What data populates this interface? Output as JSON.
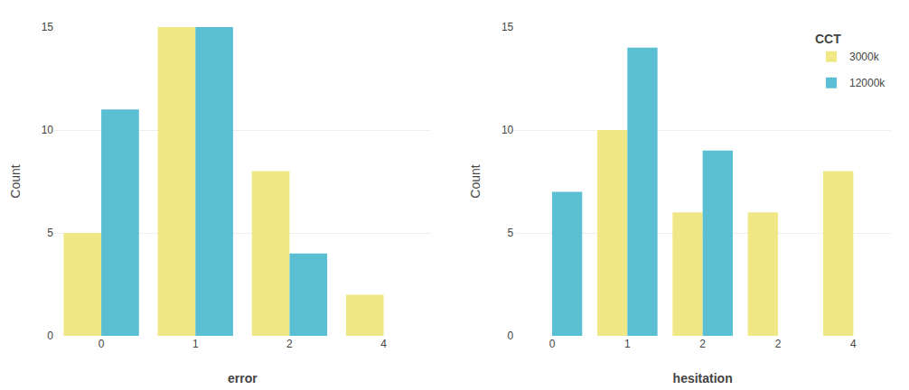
{
  "chart_data": [
    {
      "type": "bar",
      "xlabel": "error",
      "ylabel": "Count",
      "categories": [
        "0",
        "1",
        "2",
        "4"
      ],
      "series": [
        {
          "name": "3000k",
          "color": "#f0e887",
          "values": [
            5,
            15,
            8,
            2
          ]
        },
        {
          "name": "12000k",
          "color": "#5bbfd4",
          "values": [
            11,
            15,
            4,
            0
          ]
        }
      ],
      "ylim": [
        0,
        15
      ],
      "yticks": [
        0,
        5,
        10,
        15
      ],
      "grid": true
    },
    {
      "type": "bar",
      "xlabel": "hesitation",
      "ylabel": "Count",
      "categories": [
        "0",
        "1",
        "2",
        "2",
        "4"
      ],
      "series": [
        {
          "name": "3000k",
          "color": "#f0e887",
          "values": [
            0,
            10,
            6,
            6,
            8
          ]
        },
        {
          "name": "12000k",
          "color": "#5bbfd4",
          "values": [
            7,
            14,
            9,
            0,
            0
          ]
        }
      ],
      "ylim": [
        0,
        15
      ],
      "yticks": [
        0,
        5,
        10,
        15
      ],
      "grid": true,
      "legend": "upper right",
      "legend_title": "CCT"
    }
  ]
}
